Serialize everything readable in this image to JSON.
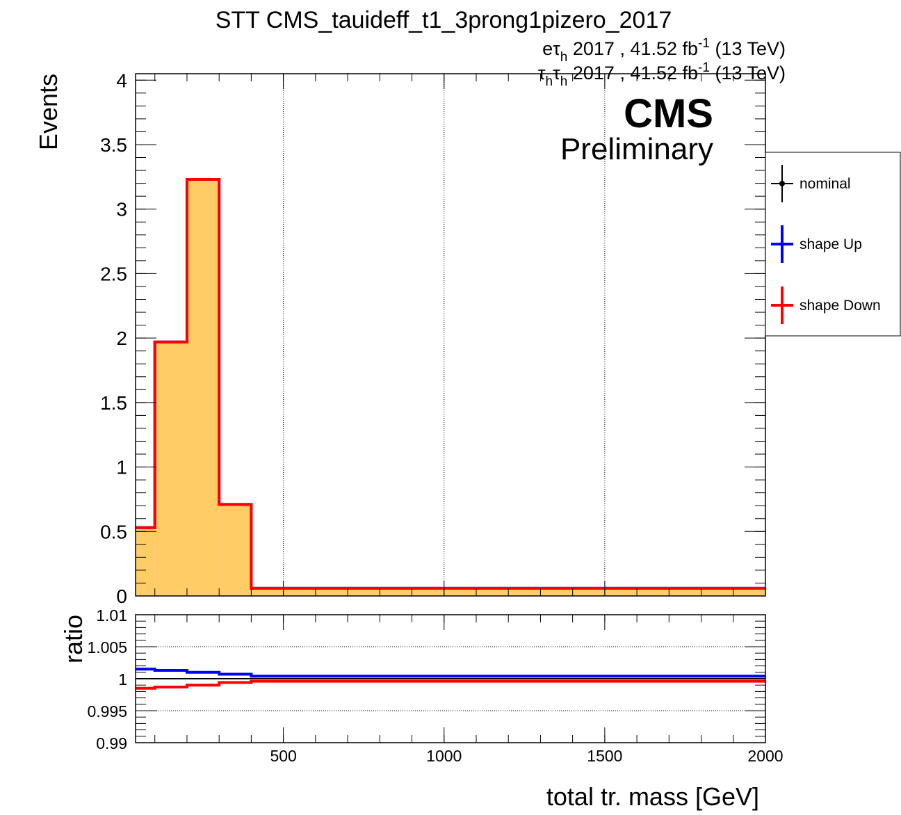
{
  "title": "STT CMS_tauideff_t1_3prong1pizero_2017",
  "lumi_lines": [
    {
      "pre": "e",
      "tau": "τ",
      "sub": "h",
      "rest": " 2017 , 41.52 fb",
      "sup": "-1",
      "tail": " (13 TeV)"
    },
    {
      "pre": "",
      "tau": "τ",
      "sub": "h",
      "tau2": "τ",
      "sub2": "h",
      "rest": " 2017 , 41.52 fb",
      "sup": "-1",
      "tail": " (13 TeV)"
    }
  ],
  "cms_label": "CMS",
  "cms_sublabel": "Preliminary",
  "legend": [
    {
      "label": "nominal",
      "color": "#000000",
      "marker": "dot"
    },
    {
      "label": "shape Up",
      "color": "#0000ff",
      "marker": "none"
    },
    {
      "label": "shape Down",
      "color": "#ff0000",
      "marker": "none"
    }
  ],
  "colors": {
    "fill": "#ffcc66",
    "nominal": "#000000",
    "up": "#0000ff",
    "down": "#ff0000"
  },
  "chart_data": [
    {
      "type": "histogram",
      "panel": "main",
      "ylabel": "Events",
      "xlim": [
        40,
        2000
      ],
      "ylim": [
        0,
        4.05
      ],
      "yticks": [
        "0",
        "0.5",
        "1",
        "1.5",
        "2",
        "2.5",
        "3",
        "3.5",
        "4"
      ],
      "ytick_values": [
        0,
        0.5,
        1,
        1.5,
        2,
        2.5,
        3,
        3.5,
        4
      ],
      "bin_edges": [
        40,
        100,
        200,
        300,
        400,
        2000
      ],
      "series": [
        {
          "name": "nominal",
          "values": [
            0.53,
            1.97,
            3.23,
            0.71,
            0.06
          ]
        },
        {
          "name": "shape Up",
          "values": [
            0.53,
            1.97,
            3.23,
            0.71,
            0.06
          ]
        },
        {
          "name": "shape Down",
          "values": [
            0.53,
            1.97,
            3.23,
            0.71,
            0.06
          ]
        }
      ],
      "grid_x": true
    },
    {
      "type": "line",
      "panel": "ratio",
      "xlabel": "total tr. mass [GeV]",
      "ylabel": "ratio",
      "xlim": [
        40,
        2000
      ],
      "ylim": [
        0.99,
        1.01
      ],
      "xticks": [
        "500",
        "1000",
        "1500",
        "2000"
      ],
      "xtick_values": [
        500,
        1000,
        1500,
        2000
      ],
      "yticks": [
        "0.99",
        "0.995",
        "1",
        "1.005",
        "1.01"
      ],
      "ytick_values": [
        0.99,
        0.995,
        1.0,
        1.005,
        1.01
      ],
      "bin_edges": [
        40,
        100,
        200,
        300,
        400,
        2000
      ],
      "series": [
        {
          "name": "shape Up",
          "values": [
            1.0015,
            1.0013,
            1.001,
            1.0007,
            1.0004
          ]
        },
        {
          "name": "shape Down",
          "values": [
            0.9985,
            0.9987,
            0.999,
            0.9994,
            0.9996
          ]
        }
      ],
      "grid_y": true
    }
  ]
}
